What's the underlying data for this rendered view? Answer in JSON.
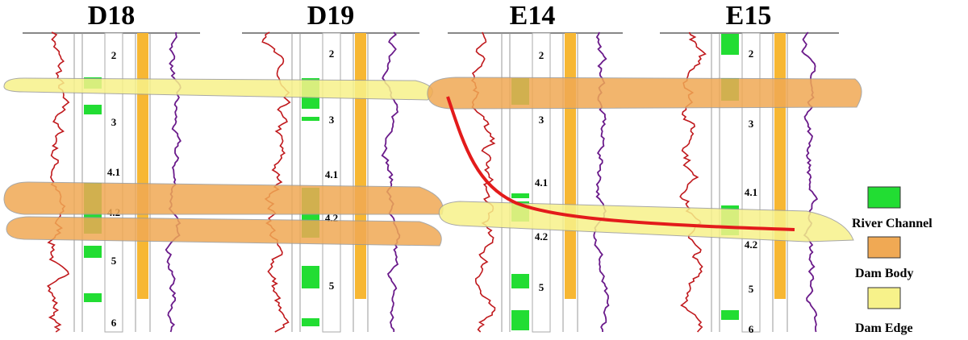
{
  "wells": [
    {
      "name": "D18",
      "layers": [
        "2",
        "3",
        "4.1",
        "4.2",
        "5",
        "6"
      ]
    },
    {
      "name": "D19",
      "layers": [
        "2",
        "3",
        "4.1",
        "4.2",
        "5"
      ]
    },
    {
      "name": "E14",
      "layers": [
        "2",
        "3",
        "4.1",
        "4.2",
        "5"
      ]
    },
    {
      "name": "E15",
      "layers": [
        "2",
        "3",
        "4.1",
        "4.2",
        "5",
        "6"
      ]
    }
  ],
  "legend": [
    "River Channel",
    "Dam Body",
    "Dam Edge"
  ]
}
